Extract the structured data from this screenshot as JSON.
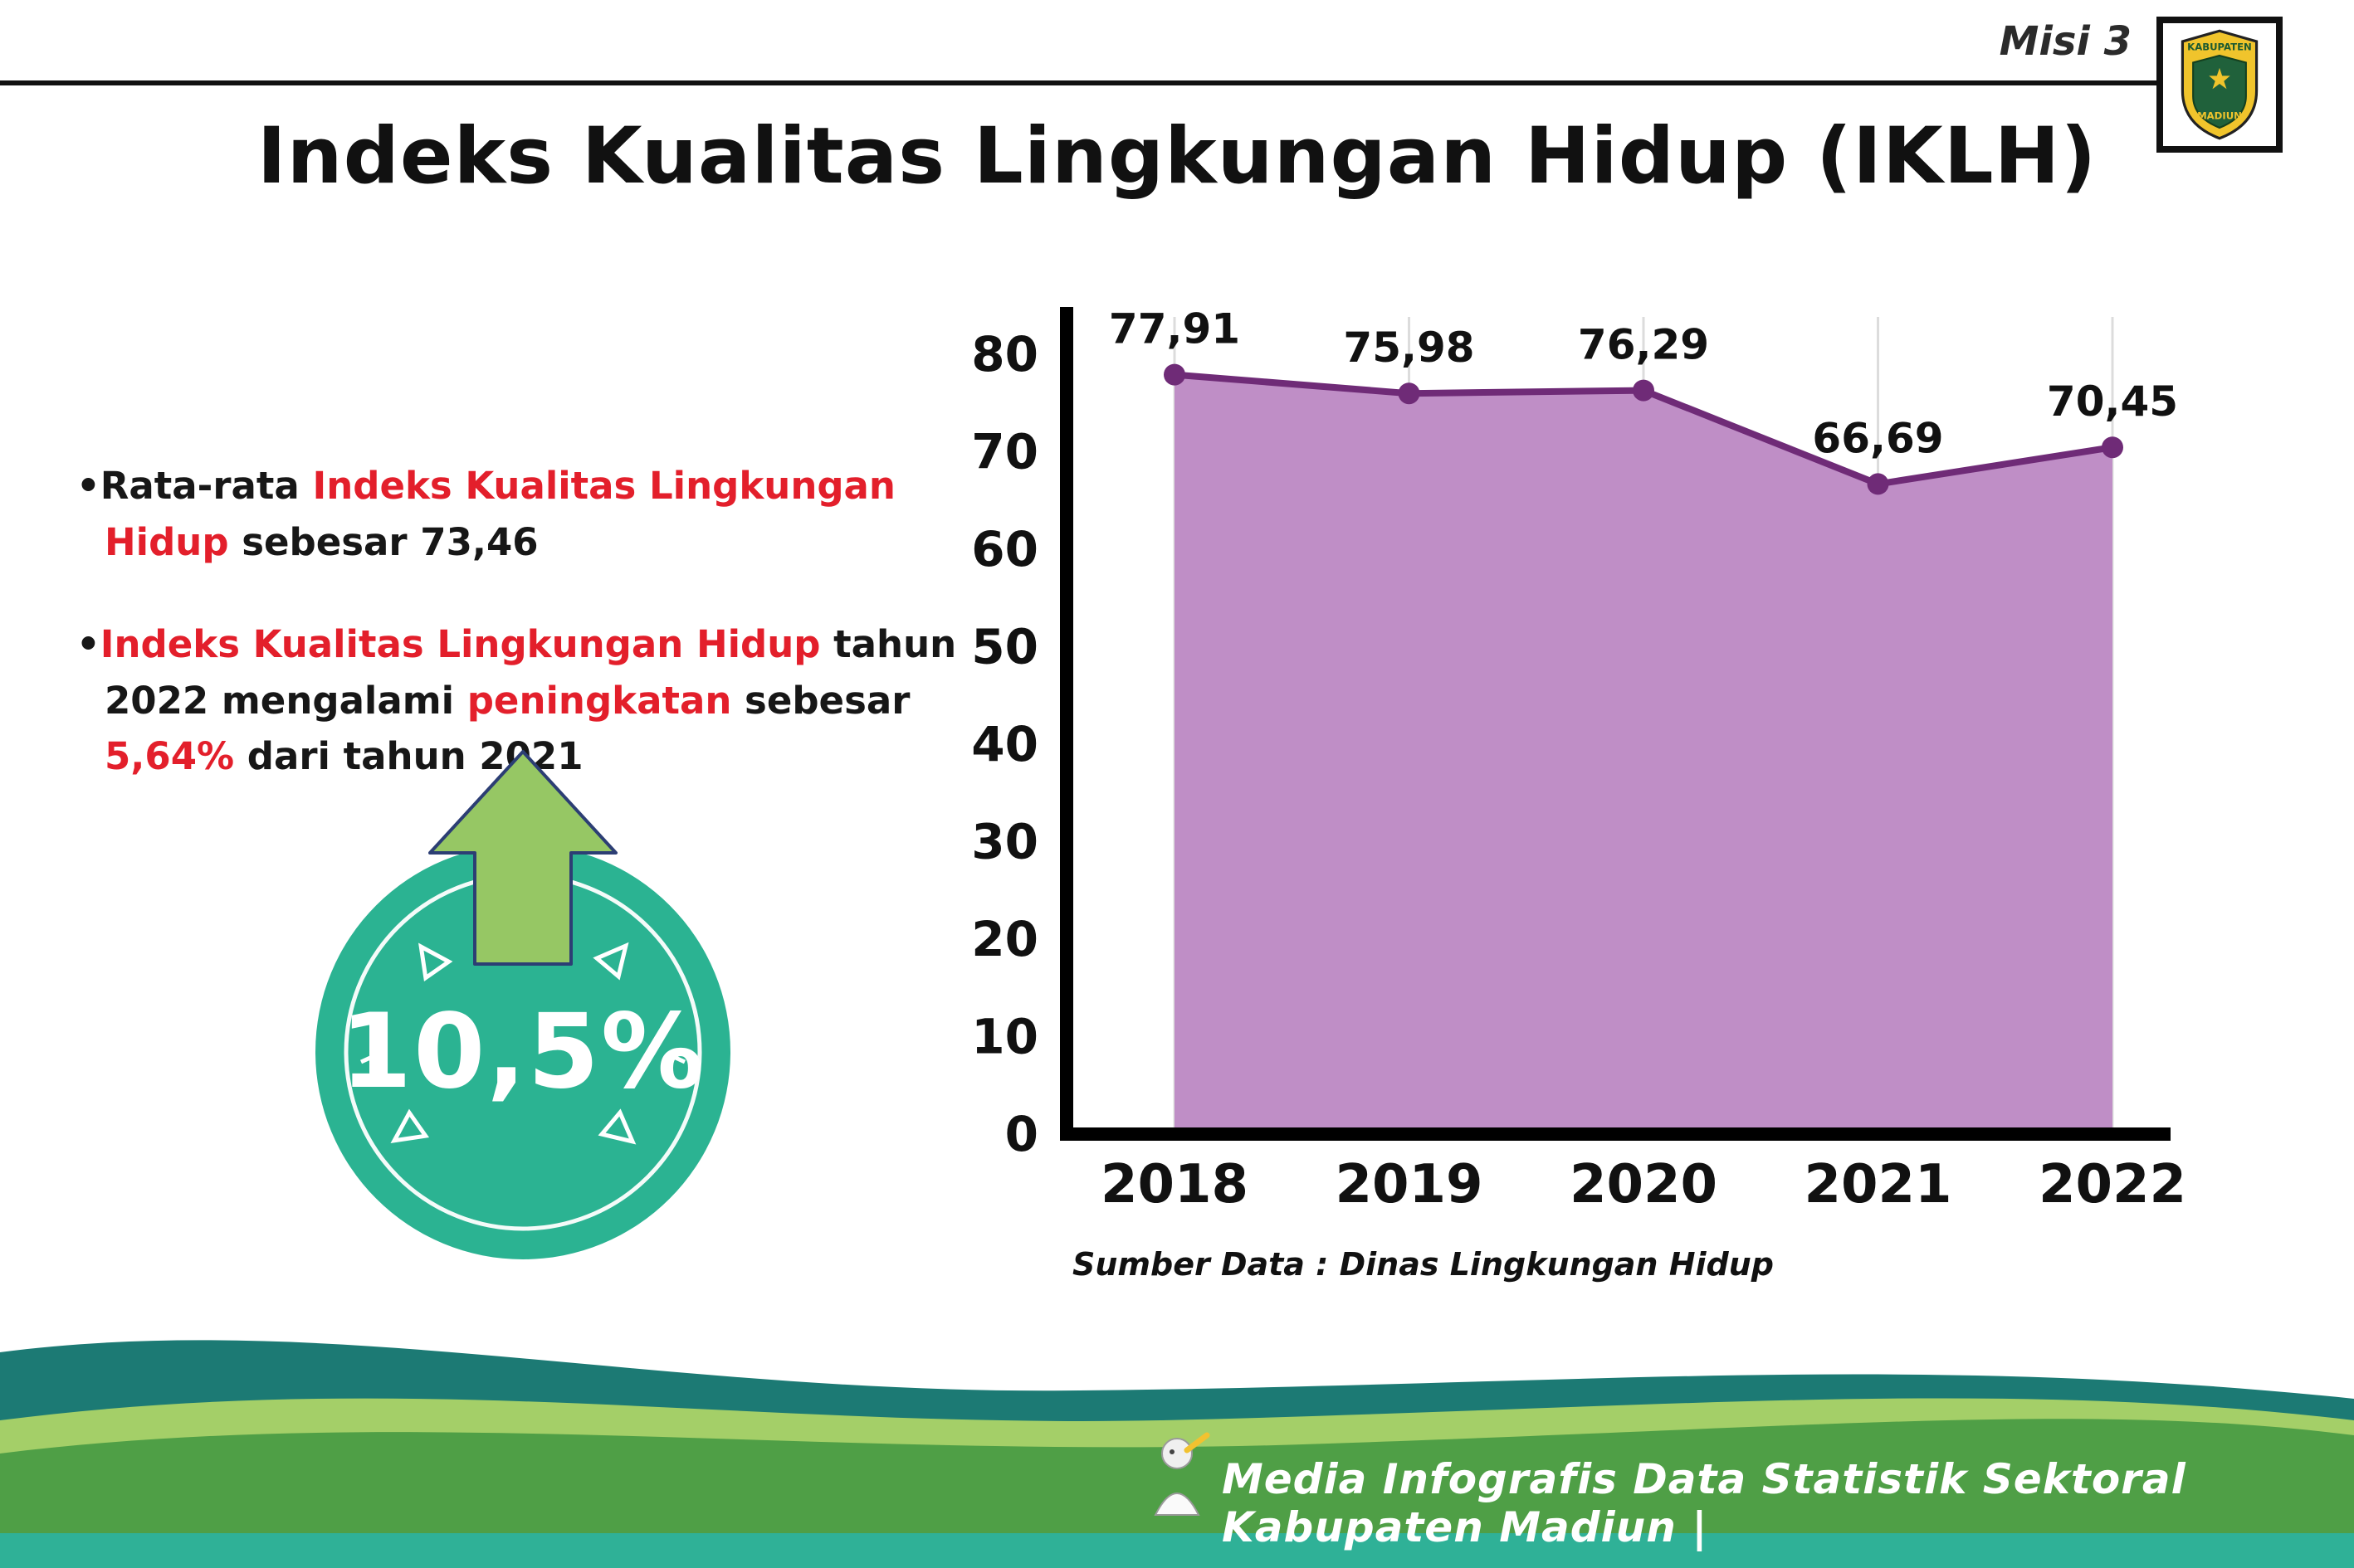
{
  "header": {
    "misi": "Misi 3",
    "title": "Indeks Kualitas Lingkungan Hidup (IKLH)",
    "logo_top": "KABUPATEN",
    "logo_bottom": "MADIUN"
  },
  "bullets": [
    {
      "marker": "•",
      "segments": [
        {
          "text": "Rata-rata ",
          "color": "black"
        },
        {
          "text": "Indeks Kualitas Lingkungan Hidup",
          "color": "red"
        },
        {
          "text": " sebesar 73,46",
          "color": "black"
        }
      ]
    },
    {
      "marker": "•",
      "segments": [
        {
          "text": "Indeks Kualitas Lingkungan Hidup",
          "color": "red"
        },
        {
          "text": " tahun 2022 mengalami ",
          "color": "black"
        },
        {
          "text": "peningkatan",
          "color": "red"
        },
        {
          "text": " sebesar ",
          "color": "black"
        },
        {
          "text": "5,64%",
          "color": "red"
        },
        {
          "text": " dari tahun 2021",
          "color": "black"
        }
      ]
    }
  ],
  "badge": {
    "value": "10,5%"
  },
  "chart_data": {
    "type": "area",
    "categories": [
      "2018",
      "2019",
      "2020",
      "2021",
      "2022"
    ],
    "values": [
      77.91,
      75.98,
      76.29,
      66.69,
      70.45
    ],
    "value_labels": [
      "77,91",
      "75,98",
      "76,29",
      "66,69",
      "70,45"
    ],
    "ylim": [
      0,
      80
    ],
    "yticks": [
      0,
      10,
      20,
      30,
      40,
      50,
      60,
      70,
      80
    ],
    "xlabel": "",
    "ylabel": "",
    "grid": "vertical-light",
    "legend": "none",
    "fill_color": "#bf8ec6",
    "line_color": "#6f2b77",
    "source": "Sumber Data : Dinas Lingkungan Hidup"
  },
  "footer": {
    "text": "Media Infografis Data Statistik Sektoral Kabupaten Madiun |"
  },
  "colors": {
    "red": "#e31f2b",
    "teal": "#2bb392",
    "arrow_green": "#96c764",
    "chart_fill": "#bf8ec6",
    "chart_line": "#6f2b77",
    "footer_dark": "#1c7a74",
    "footer_light": "#a4cf68",
    "footer_green": "#4f9f46",
    "footer_strip": "#2fb197"
  }
}
